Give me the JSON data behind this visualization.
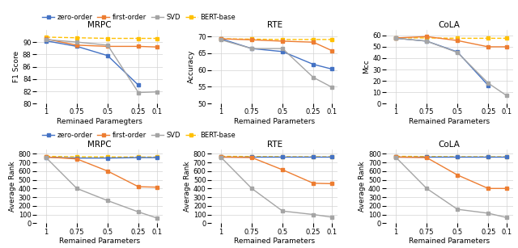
{
  "x": [
    1,
    0.75,
    0.5,
    0.25,
    0.1
  ],
  "x_labels": [
    "1",
    "0.75",
    "0.5",
    "0.25",
    "0.1"
  ],
  "top_row": {
    "MRPC": {
      "title": "MRPC",
      "xlabel": "Reminaed Paramegters",
      "ylabel": "F1 Score",
      "ylim": [
        80,
        92
      ],
      "yticks": [
        80,
        82,
        84,
        86,
        88,
        90
      ],
      "zero_order": [
        90.2,
        89.3,
        87.8,
        83.0
      ],
      "first_order": [
        90.5,
        89.5,
        89.3,
        89.3,
        89.2
      ],
      "svd": [
        90.4,
        90.0,
        89.5,
        81.8,
        81.9
      ],
      "bert_base": [
        90.8,
        90.7,
        90.6,
        90.6,
        90.6
      ]
    },
    "RTE": {
      "title": "RTE",
      "xlabel": "Remained Parameters",
      "ylabel": "Accuracy",
      "ylim": [
        50,
        72
      ],
      "yticks": [
        50,
        55,
        60,
        65,
        70
      ],
      "zero_order": [
        69.3,
        66.4,
        65.5,
        61.7,
        60.3
      ],
      "first_order": [
        69.3,
        69.0,
        68.6,
        68.3,
        65.8
      ],
      "svd": [
        69.0,
        66.4,
        66.4,
        57.8,
        54.9
      ],
      "bert_base": [
        69.3,
        69.2,
        69.1,
        69.1,
        69.1
      ]
    },
    "CoLA": {
      "title": "CoLA",
      "xlabel": "Remained Parameters",
      "ylabel": "Mcc",
      "ylim": [
        0,
        65
      ],
      "yticks": [
        0,
        10,
        20,
        30,
        40,
        50,
        60
      ],
      "zero_order": [
        57.5,
        55.0,
        45.5,
        16.0
      ],
      "first_order": [
        57.8,
        59.0,
        55.5,
        50.0,
        50.0
      ],
      "svd": [
        57.5,
        55.0,
        45.0,
        18.0,
        7.0
      ],
      "bert_base": [
        58.0,
        57.8,
        57.5,
        57.5,
        57.5
      ]
    }
  },
  "bottom_row": {
    "MRPC": {
      "title": "MRPC",
      "xlabel": "Remained Parameters",
      "ylabel": "Average Rank",
      "ylim": [
        0,
        850
      ],
      "yticks": [
        0,
        100,
        200,
        300,
        400,
        500,
        600,
        700,
        800
      ],
      "zero_order": [
        760,
        750,
        750,
        755,
        755
      ],
      "first_order": [
        762,
        740,
        600,
        420,
        415
      ],
      "svd": [
        755,
        400,
        260,
        130,
        60
      ],
      "bert_base": [
        770,
        765,
        763,
        762,
        762
      ]
    },
    "RTE": {
      "title": "RTE",
      "xlabel": "Remained Parameters",
      "ylabel": "Average Rank",
      "ylim": [
        0,
        850
      ],
      "yticks": [
        0,
        100,
        200,
        300,
        400,
        500,
        600,
        700,
        800
      ],
      "zero_order": [
        762,
        762,
        762,
        762,
        762
      ],
      "first_order": [
        762,
        756,
        615,
        460,
        455
      ],
      "svd": [
        758,
        400,
        140,
        100,
        70
      ],
      "bert_base": [
        770,
        768,
        766,
        765,
        765
      ]
    },
    "CoLA": {
      "title": "CoLA",
      "xlabel": "Remained Parameters",
      "ylabel": "Average Rank",
      "ylim": [
        0,
        850
      ],
      "yticks": [
        0,
        100,
        200,
        300,
        400,
        500,
        600,
        700,
        800
      ],
      "zero_order": [
        762,
        762,
        762,
        762,
        762
      ],
      "first_order": [
        762,
        755,
        555,
        400,
        400
      ],
      "svd": [
        758,
        400,
        160,
        115,
        65
      ],
      "bert_base": [
        770,
        768,
        766,
        765,
        765
      ]
    }
  },
  "colors": {
    "zero_order": "#4472C4",
    "first_order": "#ED7D31",
    "svd": "#A5A5A5",
    "bert_base": "#FFC000"
  },
  "legend_labels": {
    "zero_order": "zero-order",
    "first_order": "first-order",
    "svd": "SVD",
    "bert_base": "BERT-base"
  },
  "marker": "s",
  "markersize": 2.5,
  "linewidth": 1.0,
  "title_fontsize": 7.5,
  "label_fontsize": 6.5,
  "tick_fontsize": 6,
  "legend_fontsize": 6
}
